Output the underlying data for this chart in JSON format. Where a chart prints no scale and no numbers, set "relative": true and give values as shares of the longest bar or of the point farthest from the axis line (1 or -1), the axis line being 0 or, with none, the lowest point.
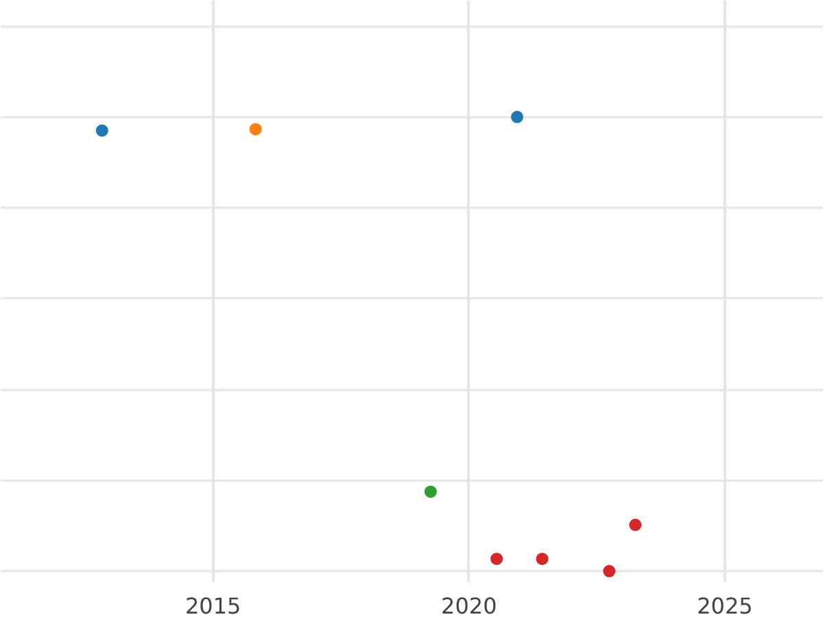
{
  "chart_data": {
    "type": "scatter",
    "relative": true,
    "xlim": [
      2010.85,
      2026.93
    ],
    "xticks": [
      2015,
      2020,
      2025
    ],
    "grid": true,
    "marker": "circle",
    "series": [
      {
        "color": "#1f77b4",
        "x": [
          2012.83,
          2020.94
        ],
        "values": [
          0.97,
          1.0
        ]
      },
      {
        "color": "#ff7f0e",
        "x": [
          2015.83
        ],
        "values": [
          0.973
        ]
      },
      {
        "color": "#2ca02c",
        "x": [
          2019.25
        ],
        "values": [
          0.175
        ]
      },
      {
        "color": "#d62728",
        "x": [
          2020.54,
          2021.43,
          2022.74,
          2023.25
        ],
        "values": [
          0.027,
          0.027,
          0.0,
          0.102
        ]
      }
    ]
  }
}
